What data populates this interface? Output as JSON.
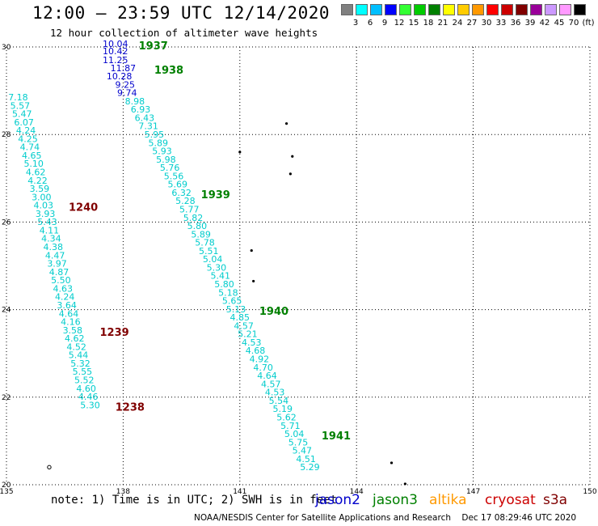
{
  "header": {
    "title": "12:00 – 23:59 UTC 12/14/2020",
    "subtitle": "12 hour collection of altimeter wave heights"
  },
  "legend": {
    "colors": [
      "#808080",
      "#00ffff",
      "#00bfff",
      "#0000ff",
      "#33ff33",
      "#00cc00",
      "#008000",
      "#ffff00",
      "#ffcc00",
      "#ff9900",
      "#ff0000",
      "#cc0000",
      "#800000",
      "#990099",
      "#cc99ff",
      "#ff99ff",
      "#000000"
    ],
    "labels": [
      "3",
      "6",
      "9",
      "12",
      "15",
      "18",
      "21",
      "24",
      "27",
      "30",
      "33",
      "36",
      "39",
      "42",
      "45",
      "70"
    ],
    "unit": "(ft)"
  },
  "footer": {
    "note": "note: 1) Time is in UTC; 2) SWH is in feet",
    "satellites": [
      {
        "name": "jason2",
        "color": "#0000cc"
      },
      {
        "name": "jason3",
        "color": "#008000"
      },
      {
        "name": "altika",
        "color": "#ff9900"
      },
      {
        "name": "cryosat",
        "color": "#cc0000"
      },
      {
        "name": "s3a",
        "color": "#800000"
      }
    ],
    "credit": "NOAA/NESDIS Center for Satellite Applications and Research",
    "timestamp": "Dec 17 08:29:46 UTC 2020"
  },
  "chart_data": {
    "type": "scatter",
    "title": "12:00 – 23:59 UTC 12/14/2020",
    "subtitle": "12 hour collection of altimeter wave heights",
    "xlim": [
      135,
      150
    ],
    "ylim": [
      20,
      30
    ],
    "xticks": [
      "135",
      "138",
      "141",
      "144",
      "147",
      "150"
    ],
    "yticks": [
      "20",
      "22",
      "24",
      "26",
      "28",
      "30"
    ],
    "grid": true,
    "series": [
      {
        "name": "jason3",
        "color": "#008000",
        "points": [
          {
            "lon": 137.8,
            "lat": 30.0,
            "v": "10.04"
          },
          {
            "lon": 137.8,
            "lat": 29.83,
            "v": "10.42"
          },
          {
            "lon": 137.8,
            "lat": 29.63,
            "v": "11.25"
          },
          {
            "lon": 138.0,
            "lat": 29.45,
            "v": "11.87"
          },
          {
            "lon": 137.9,
            "lat": 29.26,
            "v": "10.28"
          },
          {
            "lon": 138.05,
            "lat": 29.07,
            "v": "9.25"
          },
          {
            "lon": 138.1,
            "lat": 28.88,
            "v": "9.74"
          },
          {
            "lon": 138.3,
            "lat": 28.69,
            "v": "8.98"
          },
          {
            "lon": 138.45,
            "lat": 28.5,
            "v": "6.93"
          },
          {
            "lon": 138.55,
            "lat": 28.31,
            "v": "6.43"
          },
          {
            "lon": 138.65,
            "lat": 28.12,
            "v": "7.31"
          },
          {
            "lon": 138.8,
            "lat": 27.93,
            "v": "5.95"
          },
          {
            "lon": 138.9,
            "lat": 27.74,
            "v": "5.89"
          },
          {
            "lon": 139.0,
            "lat": 27.55,
            "v": "5.93"
          },
          {
            "lon": 139.1,
            "lat": 27.36,
            "v": "5.98"
          },
          {
            "lon": 139.2,
            "lat": 27.17,
            "v": "5.76"
          },
          {
            "lon": 139.3,
            "lat": 26.98,
            "v": "5.56"
          },
          {
            "lon": 139.4,
            "lat": 26.79,
            "v": "5.69"
          },
          {
            "lon": 139.5,
            "lat": 26.6,
            "v": "6.32"
          },
          {
            "lon": 139.6,
            "lat": 26.41,
            "v": "5.28"
          },
          {
            "lon": 139.7,
            "lat": 26.22,
            "v": "5.77"
          },
          {
            "lon": 139.8,
            "lat": 26.03,
            "v": "5.82"
          },
          {
            "lon": 139.9,
            "lat": 25.84,
            "v": "5.80"
          },
          {
            "lon": 140.0,
            "lat": 25.65,
            "v": "5.89"
          },
          {
            "lon": 140.1,
            "lat": 25.46,
            "v": "5.78"
          },
          {
            "lon": 140.2,
            "lat": 25.27,
            "v": "5.51"
          },
          {
            "lon": 140.3,
            "lat": 25.08,
            "v": "5.04"
          },
          {
            "lon": 140.4,
            "lat": 24.89,
            "v": "5.30"
          },
          {
            "lon": 140.5,
            "lat": 24.7,
            "v": "5.41"
          },
          {
            "lon": 140.6,
            "lat": 24.51,
            "v": "5.80"
          },
          {
            "lon": 140.7,
            "lat": 24.32,
            "v": "5.18"
          },
          {
            "lon": 140.8,
            "lat": 24.13,
            "v": "5.65"
          },
          {
            "lon": 140.9,
            "lat": 23.94,
            "v": "5.13"
          },
          {
            "lon": 141.0,
            "lat": 23.75,
            "v": "4.85"
          },
          {
            "lon": 141.1,
            "lat": 23.56,
            "v": "4.57"
          },
          {
            "lon": 141.2,
            "lat": 23.37,
            "v": "5.21"
          },
          {
            "lon": 141.3,
            "lat": 23.18,
            "v": "4.53"
          },
          {
            "lon": 141.4,
            "lat": 22.99,
            "v": "4.68"
          },
          {
            "lon": 141.5,
            "lat": 22.8,
            "v": "4.92"
          },
          {
            "lon": 141.6,
            "lat": 22.61,
            "v": "4.70"
          },
          {
            "lon": 141.7,
            "lat": 22.42,
            "v": "4.64"
          },
          {
            "lon": 141.8,
            "lat": 22.23,
            "v": "4.57"
          },
          {
            "lon": 141.9,
            "lat": 22.04,
            "v": "4.53"
          },
          {
            "lon": 142.0,
            "lat": 21.85,
            "v": "5.54"
          },
          {
            "lon": 142.1,
            "lat": 21.66,
            "v": "5.19"
          },
          {
            "lon": 142.2,
            "lat": 21.47,
            "v": "5.62"
          },
          {
            "lon": 142.3,
            "lat": 21.28,
            "v": "5.71"
          },
          {
            "lon": 142.4,
            "lat": 21.09,
            "v": "5.04"
          },
          {
            "lon": 142.5,
            "lat": 20.9,
            "v": "5.75"
          },
          {
            "lon": 142.6,
            "lat": 20.71,
            "v": "5.47"
          },
          {
            "lon": 142.7,
            "lat": 20.52,
            "v": "4.51"
          },
          {
            "lon": 142.8,
            "lat": 20.33,
            "v": "5.29"
          }
        ]
      },
      {
        "name": "s3a",
        "color": "#800000",
        "points": [
          {
            "lon": 135.3,
            "lat": 28.78,
            "v": "7.18"
          },
          {
            "lon": 135.35,
            "lat": 28.59,
            "v": "5.57"
          },
          {
            "lon": 135.4,
            "lat": 28.4,
            "v": "5.47"
          },
          {
            "lon": 135.45,
            "lat": 28.21,
            "v": "6.07"
          },
          {
            "lon": 135.5,
            "lat": 28.02,
            "v": "4.24"
          },
          {
            "lon": 135.55,
            "lat": 27.83,
            "v": "4.25"
          },
          {
            "lon": 135.6,
            "lat": 27.64,
            "v": "4.74"
          },
          {
            "lon": 135.65,
            "lat": 27.45,
            "v": "4.65"
          },
          {
            "lon": 135.7,
            "lat": 27.26,
            "v": "5.10"
          },
          {
            "lon": 135.75,
            "lat": 27.07,
            "v": "4.62"
          },
          {
            "lon": 135.8,
            "lat": 26.88,
            "v": "4.22"
          },
          {
            "lon": 135.85,
            "lat": 26.69,
            "v": "3.59"
          },
          {
            "lon": 135.9,
            "lat": 26.5,
            "v": "3.00"
          },
          {
            "lon": 135.95,
            "lat": 26.31,
            "v": "4.03"
          },
          {
            "lon": 136.0,
            "lat": 26.12,
            "v": "3.93"
          },
          {
            "lon": 136.05,
            "lat": 25.93,
            "v": "5.43"
          },
          {
            "lon": 136.1,
            "lat": 25.74,
            "v": "4.11"
          },
          {
            "lon": 136.15,
            "lat": 25.55,
            "v": "4.34"
          },
          {
            "lon": 136.2,
            "lat": 25.36,
            "v": "4.38"
          },
          {
            "lon": 136.25,
            "lat": 25.17,
            "v": "4.47"
          },
          {
            "lon": 136.3,
            "lat": 24.98,
            "v": "3.97"
          },
          {
            "lon": 136.35,
            "lat": 24.79,
            "v": "4.87"
          },
          {
            "lon": 136.4,
            "lat": 24.6,
            "v": "5.50"
          },
          {
            "lon": 136.45,
            "lat": 24.41,
            "v": "4.63"
          },
          {
            "lon": 136.5,
            "lat": 24.22,
            "v": "4.24"
          },
          {
            "lon": 136.55,
            "lat": 24.03,
            "v": "3.64"
          },
          {
            "lon": 136.6,
            "lat": 23.84,
            "v": "4.64"
          },
          {
            "lon": 136.65,
            "lat": 23.65,
            "v": "4.16"
          },
          {
            "lon": 136.7,
            "lat": 23.46,
            "v": "3.58"
          },
          {
            "lon": 136.75,
            "lat": 23.27,
            "v": "4.62"
          },
          {
            "lon": 136.8,
            "lat": 23.08,
            "v": "4.52"
          },
          {
            "lon": 136.85,
            "lat": 22.89,
            "v": "5.44"
          },
          {
            "lon": 136.9,
            "lat": 22.7,
            "v": "5.32"
          },
          {
            "lon": 136.95,
            "lat": 22.51,
            "v": "5.55"
          },
          {
            "lon": 137.0,
            "lat": 22.32,
            "v": "5.52"
          },
          {
            "lon": 137.05,
            "lat": 22.13,
            "v": "4.60"
          },
          {
            "lon": 137.1,
            "lat": 21.94,
            "v": "4.46"
          },
          {
            "lon": 137.15,
            "lat": 21.75,
            "v": "5.30"
          }
        ]
      }
    ],
    "annotations": [
      {
        "text": "1937",
        "color": "#008000",
        "lon": 138.4,
        "lat": 30.0
      },
      {
        "text": "1938",
        "color": "#008000",
        "lon": 138.8,
        "lat": 29.45
      },
      {
        "text": "1939",
        "color": "#008000",
        "lon": 140.0,
        "lat": 26.6
      },
      {
        "text": "1940",
        "color": "#008000",
        "lon": 141.5,
        "lat": 23.94
      },
      {
        "text": "1941",
        "color": "#008000",
        "lon": 143.1,
        "lat": 21.09
      },
      {
        "text": "1240",
        "color": "#800000",
        "lon": 136.6,
        "lat": 26.31
      },
      {
        "text": "1239",
        "color": "#800000",
        "lon": 137.4,
        "lat": 23.46
      },
      {
        "text": "1238",
        "color": "#800000",
        "lon": 137.8,
        "lat": 21.75
      }
    ]
  }
}
